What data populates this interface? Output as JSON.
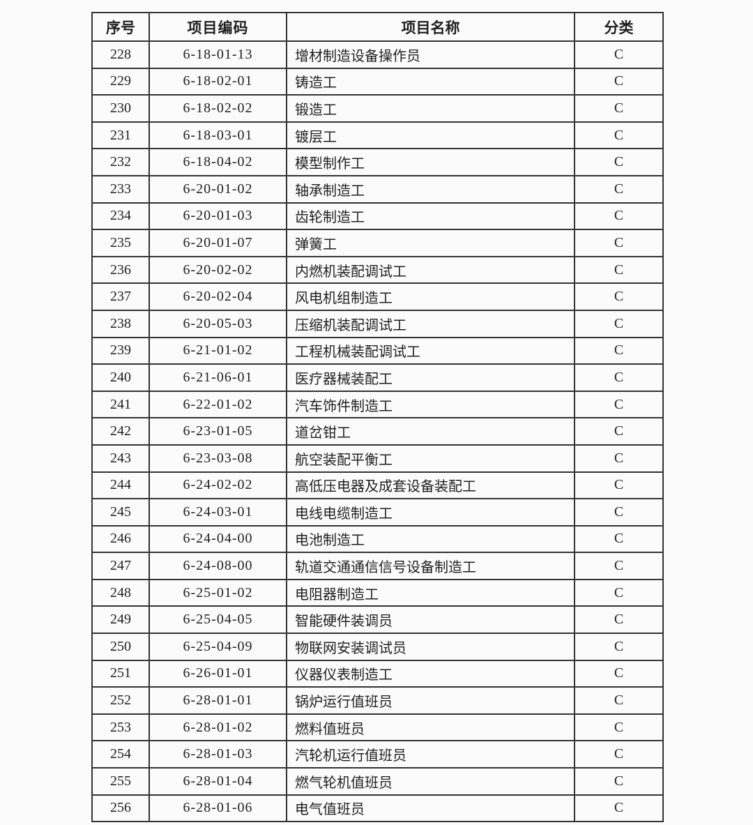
{
  "colors": {
    "background": "#fbfbfb",
    "border": "#333333",
    "text": "#1f1f1f"
  },
  "table": {
    "columns": [
      "序号",
      "项目编码",
      "项目名称",
      "分类"
    ],
    "rows": [
      {
        "index": "228",
        "code": "6-18-01-13",
        "name": "增材制造设备操作员",
        "category": "C"
      },
      {
        "index": "229",
        "code": "6-18-02-01",
        "name": "铸造工",
        "category": "C"
      },
      {
        "index": "230",
        "code": "6-18-02-02",
        "name": "锻造工",
        "category": "C"
      },
      {
        "index": "231",
        "code": "6-18-03-01",
        "name": "镀层工",
        "category": "C"
      },
      {
        "index": "232",
        "code": "6-18-04-02",
        "name": "模型制作工",
        "category": "C"
      },
      {
        "index": "233",
        "code": "6-20-01-02",
        "name": "轴承制造工",
        "category": "C"
      },
      {
        "index": "234",
        "code": "6-20-01-03",
        "name": "齿轮制造工",
        "category": "C"
      },
      {
        "index": "235",
        "code": "6-20-01-07",
        "name": "弹簧工",
        "category": "C"
      },
      {
        "index": "236",
        "code": "6-20-02-02",
        "name": "内燃机装配调试工",
        "category": "C"
      },
      {
        "index": "237",
        "code": "6-20-02-04",
        "name": "风电机组制造工",
        "category": "C"
      },
      {
        "index": "238",
        "code": "6-20-05-03",
        "name": "压缩机装配调试工",
        "category": "C"
      },
      {
        "index": "239",
        "code": "6-21-01-02",
        "name": "工程机械装配调试工",
        "category": "C"
      },
      {
        "index": "240",
        "code": "6-21-06-01",
        "name": "医疗器械装配工",
        "category": "C"
      },
      {
        "index": "241",
        "code": "6-22-01-02",
        "name": "汽车饰件制造工",
        "category": "C"
      },
      {
        "index": "242",
        "code": "6-23-01-05",
        "name": "道岔钳工",
        "category": "C"
      },
      {
        "index": "243",
        "code": "6-23-03-08",
        "name": "航空装配平衡工",
        "category": "C"
      },
      {
        "index": "244",
        "code": "6-24-02-02",
        "name": "高低压电器及成套设备装配工",
        "category": "C"
      },
      {
        "index": "245",
        "code": "6-24-03-01",
        "name": "电线电缆制造工",
        "category": "C"
      },
      {
        "index": "246",
        "code": "6-24-04-00",
        "name": "电池制造工",
        "category": "C"
      },
      {
        "index": "247",
        "code": "6-24-08-00",
        "name": "轨道交通通信信号设备制造工",
        "category": "C"
      },
      {
        "index": "248",
        "code": "6-25-01-02",
        "name": "电阻器制造工",
        "category": "C"
      },
      {
        "index": "249",
        "code": "6-25-04-05",
        "name": "智能硬件装调员",
        "category": "C"
      },
      {
        "index": "250",
        "code": "6-25-04-09",
        "name": "物联网安装调试员",
        "category": "C"
      },
      {
        "index": "251",
        "code": "6-26-01-01",
        "name": "仪器仪表制造工",
        "category": "C"
      },
      {
        "index": "252",
        "code": "6-28-01-01",
        "name": "锅炉运行值班员",
        "category": "C"
      },
      {
        "index": "253",
        "code": "6-28-01-02",
        "name": "燃料值班员",
        "category": "C"
      },
      {
        "index": "254",
        "code": "6-28-01-03",
        "name": "汽轮机运行值班员",
        "category": "C"
      },
      {
        "index": "255",
        "code": "6-28-01-04",
        "name": "燃气轮机值班员",
        "category": "C"
      },
      {
        "index": "256",
        "code": "6-28-01-06",
        "name": "电气值班员",
        "category": "C"
      }
    ]
  }
}
